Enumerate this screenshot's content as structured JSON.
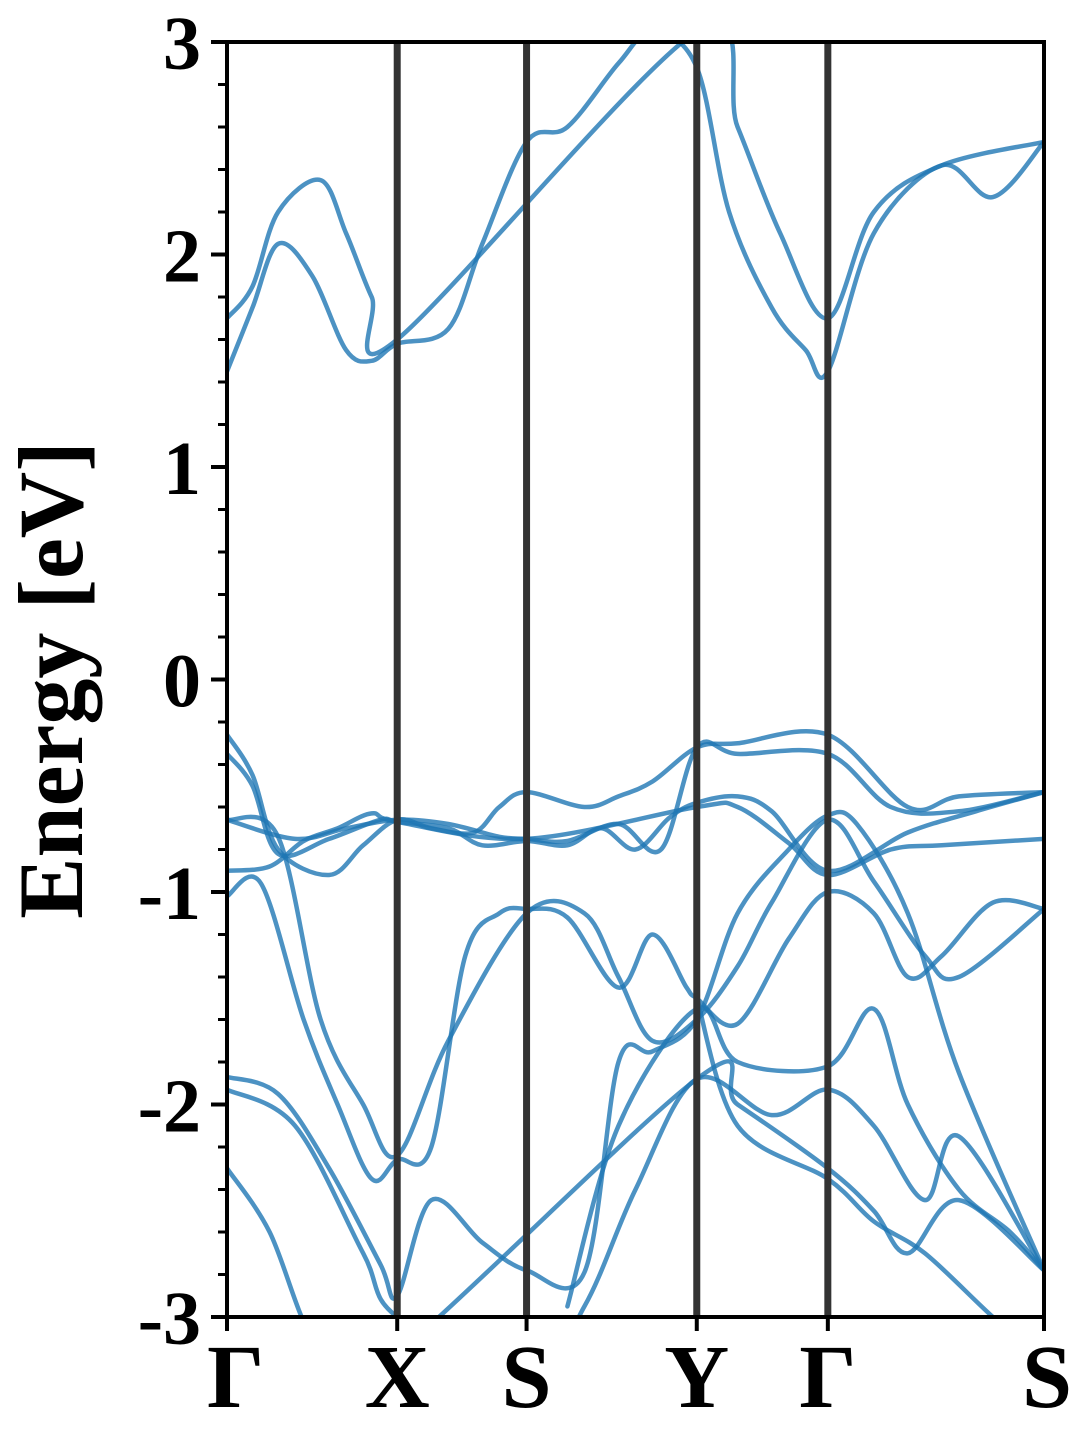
{
  "chart_data": {
    "type": "line",
    "title": "",
    "xlabel": "",
    "ylabel": "Energy [eV]",
    "ylim": [
      -3,
      3
    ],
    "yticks": [
      -3,
      -2,
      -1,
      0,
      1,
      2,
      3
    ],
    "ytick_labels": [
      "-3",
      "-2",
      "-1",
      "0",
      "1",
      "2",
      "3"
    ],
    "xlim": [
      0,
      4.8
    ],
    "high_symmetry_points": [
      {
        "label": "Γ",
        "x": 0
      },
      {
        "label": "X",
        "x": 1
      },
      {
        "label": "S",
        "x": 1.76
      },
      {
        "label": "Y",
        "x": 2.76
      },
      {
        "label": "Γ",
        "x": 3.53
      },
      {
        "label": "S",
        "x": 4.8
      }
    ],
    "grid": false,
    "legend": "none",
    "band_color": "#1f77b4",
    "vline_color": "#333333",
    "bands": [
      {
        "x": [
          0,
          0.15,
          0.3,
          0.5,
          0.7,
          0.85,
          1.0,
          1.3,
          1.5,
          1.76,
          2.0,
          2.3,
          2.5,
          2.76,
          2.95,
          3.2,
          3.4,
          3.53,
          3.8,
          4.2,
          4.5,
          4.8
        ],
        "y": [
          1.45,
          1.75,
          2.05,
          1.9,
          1.55,
          1.5,
          1.58,
          1.65,
          2.05,
          2.53,
          2.6,
          2.9,
          3.05,
          2.88,
          2.2,
          1.75,
          1.55,
          1.45,
          2.1,
          2.42,
          2.27,
          2.53
        ]
      },
      {
        "x": [
          0,
          0.15,
          0.3,
          0.55,
          0.7,
          0.85,
          1.0,
          2.76,
          3.0,
          3.25,
          3.53,
          3.8,
          4.2,
          4.8
        ],
        "y": [
          1.7,
          1.85,
          2.2,
          2.35,
          2.1,
          1.8,
          1.6,
          3.05,
          2.6,
          2.1,
          1.7,
          2.2,
          2.42,
          2.53
        ]
      },
      {
        "x": [
          0,
          0.15,
          0.3,
          0.6,
          0.8,
          1.0,
          1.2,
          1.45,
          1.6,
          1.76,
          2.1,
          2.3,
          2.5,
          2.76,
          3.0,
          3.53,
          4.0,
          4.3,
          4.8
        ],
        "y": [
          -0.26,
          -0.45,
          -0.8,
          -0.92,
          -0.78,
          -0.66,
          -0.7,
          -0.72,
          -0.6,
          -0.53,
          -0.6,
          -0.55,
          -0.48,
          -0.32,
          -0.3,
          -0.26,
          -0.6,
          -0.55,
          -0.53
        ]
      },
      {
        "x": [
          0,
          0.15,
          0.3,
          0.6,
          0.9,
          1.0,
          1.3,
          1.5,
          1.76,
          2.0,
          2.2,
          2.4,
          2.6,
          2.76,
          3.0,
          3.2,
          3.53,
          4.0,
          4.4,
          4.8
        ],
        "y": [
          -0.35,
          -0.5,
          -0.82,
          -0.75,
          -0.66,
          -0.67,
          -0.7,
          -0.78,
          -0.76,
          -0.78,
          -0.7,
          -0.8,
          -0.65,
          -0.58,
          -0.55,
          -0.62,
          -0.9,
          -0.72,
          -0.62,
          -0.53
        ]
      },
      {
        "x": [
          0,
          0.4,
          0.7,
          1.0,
          1.3,
          1.6,
          1.76,
          2.0,
          2.3,
          2.55,
          2.76,
          3.0,
          3.53,
          3.9,
          4.3,
          4.8
        ],
        "y": [
          -0.66,
          -0.75,
          -0.7,
          -0.66,
          -0.68,
          -0.74,
          -0.75,
          -0.76,
          -0.68,
          -0.8,
          -0.32,
          -0.35,
          -0.35,
          -0.6,
          -0.62,
          -0.53
        ]
      },
      {
        "x": [
          0,
          0.25,
          0.45,
          0.65,
          0.85,
          1.0,
          1.76,
          2.76,
          3.0,
          3.3,
          3.53,
          3.9,
          4.2,
          4.8
        ],
        "y": [
          -0.9,
          -0.88,
          -0.76,
          -0.7,
          -0.63,
          -0.67,
          -0.75,
          -0.6,
          -0.6,
          -0.77,
          -0.92,
          -0.8,
          -0.78,
          -0.75
        ]
      },
      {
        "x": [
          0,
          0.2,
          0.45,
          0.65,
          0.85,
          1.0,
          1.2,
          1.4,
          1.6,
          1.76,
          2.0,
          2.3,
          2.5,
          2.7,
          2.76,
          3.0,
          3.3,
          3.53,
          3.8,
          4.0,
          4.2,
          4.5,
          4.8
        ],
        "y": [
          -1.02,
          -0.96,
          -1.6,
          -2.0,
          -2.35,
          -2.26,
          -2.2,
          -1.3,
          -1.1,
          -1.08,
          -1.12,
          -1.45,
          -1.2,
          -1.45,
          -1.5,
          -1.62,
          -1.22,
          -1.0,
          -1.1,
          -1.4,
          -1.3,
          -1.05,
          -1.08
        ]
      },
      {
        "x": [
          0,
          0.3,
          0.55,
          0.8,
          1.0,
          1.3,
          1.76,
          2.1,
          2.3,
          2.5,
          2.76,
          3.0,
          3.2,
          3.53,
          3.8,
          4.1,
          4.3,
          4.8
        ],
        "y": [
          -0.66,
          -0.74,
          -1.6,
          -2.0,
          -2.24,
          -1.7,
          -1.1,
          -1.1,
          -1.4,
          -1.7,
          -1.6,
          -1.35,
          -1.05,
          -0.66,
          -0.95,
          -1.3,
          -1.4,
          -1.08
        ]
      },
      {
        "x": [
          0,
          0.3,
          0.6,
          0.9,
          1.0,
          1.2,
          1.5,
          1.76,
          2.1,
          2.3,
          2.5,
          2.76,
          3.0,
          3.3,
          3.53,
          3.7,
          4.0,
          4.3,
          4.8
        ],
        "y": [
          -1.87,
          -1.95,
          -2.3,
          -2.75,
          -2.9,
          -2.45,
          -2.65,
          -2.78,
          -2.79,
          -1.8,
          -1.75,
          -1.6,
          -1.1,
          -0.8,
          -0.64,
          -0.68,
          -1.1,
          -1.85,
          -2.78
        ]
      },
      {
        "x": [
          0,
          0.4,
          0.8,
          1.0,
          1.76,
          2.1,
          2.4,
          2.76,
          3.2,
          3.53,
          3.8,
          4.1,
          4.3,
          4.8
        ],
        "y": [
          -1.93,
          -2.1,
          -2.7,
          -3.0,
          -3.3,
          -2.95,
          -2.4,
          -1.88,
          -2.05,
          -1.93,
          -2.1,
          -2.45,
          -2.15,
          -2.78
        ]
      },
      {
        "x": [
          0,
          0.25,
          0.5,
          0.8,
          2.76,
          3.0,
          3.53,
          3.8,
          4.0,
          4.3,
          4.8
        ],
        "y": [
          -2.3,
          -2.6,
          -3.1,
          -3.3,
          -1.88,
          -2.0,
          -2.3,
          -2.5,
          -2.7,
          -2.45,
          -2.78
        ]
      },
      {
        "x": [
          2.76,
          3.0,
          3.53,
          3.8,
          4.1,
          4.5,
          4.8
        ],
        "y": [
          -1.5,
          -2.1,
          -2.35,
          -2.55,
          -2.7,
          -3.0,
          -3.2
        ]
      },
      {
        "x": [
          2.0,
          2.3,
          2.76,
          3.0,
          3.53,
          3.8,
          4.0,
          4.3,
          4.6,
          4.8
        ],
        "y": [
          -2.95,
          -2.1,
          -1.55,
          -1.8,
          -1.82,
          -1.55,
          -2.0,
          -2.4,
          -2.6,
          -2.78
        ]
      }
    ]
  }
}
